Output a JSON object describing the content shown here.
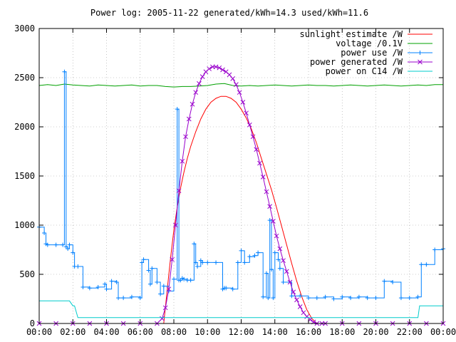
{
  "chart_data": {
    "type": "line",
    "title": "Power log: 2005-11-22 generated/kWh=14.3 used/kWh=11.6",
    "xlim": [
      0,
      24
    ],
    "ylim": [
      0,
      3000
    ],
    "x_ticks": [
      "00:00",
      "02:00",
      "04:00",
      "06:00",
      "08:00",
      "10:00",
      "12:00",
      "14:00",
      "16:00",
      "18:00",
      "20:00",
      "22:00",
      "00:00"
    ],
    "y_ticks": [
      "0",
      "500",
      "1000",
      "1500",
      "2000",
      "2500",
      "3000"
    ],
    "grid": true,
    "legend_position": "top-right",
    "series": [
      {
        "name": "sunlight estimate /W",
        "color": "#ff0000",
        "marker": "none",
        "x": [
          7.4,
          7.6,
          7.8,
          8.0,
          8.2,
          8.4,
          8.6,
          8.8,
          9.0,
          9.3,
          9.6,
          9.9,
          10.2,
          10.5,
          10.8,
          11.1,
          11.4,
          11.7,
          12.0,
          12.3,
          12.6,
          12.9,
          13.2,
          13.5,
          13.8,
          14.1,
          14.4,
          14.7,
          15.0,
          15.3,
          15.6,
          15.9,
          16.2,
          16.5
        ],
        "y": [
          0,
          330,
          660,
          950,
          1180,
          1380,
          1540,
          1680,
          1800,
          1950,
          2080,
          2180,
          2250,
          2290,
          2310,
          2310,
          2290,
          2250,
          2180,
          2090,
          1980,
          1840,
          1680,
          1520,
          1360,
          1180,
          990,
          800,
          610,
          430,
          270,
          140,
          50,
          0
        ]
      },
      {
        "name": "voltage /0.1V",
        "color": "#00a000",
        "marker": "none",
        "x": [
          0,
          0.5,
          1,
          1.5,
          2,
          2.5,
          3,
          3.5,
          4,
          4.5,
          5,
          5.5,
          6,
          6.5,
          7,
          7.5,
          8,
          8.5,
          9,
          9.5,
          10,
          10.5,
          11,
          11.5,
          12,
          12.5,
          13,
          13.5,
          14,
          14.5,
          15,
          15.5,
          16,
          16.5,
          17,
          17.5,
          18,
          18.5,
          19,
          19.5,
          20,
          20.5,
          21,
          21.5,
          22,
          22.5,
          23,
          23.5,
          24
        ],
        "y": [
          2420,
          2430,
          2420,
          2435,
          2425,
          2420,
          2415,
          2425,
          2420,
          2415,
          2420,
          2425,
          2415,
          2420,
          2420,
          2410,
          2405,
          2410,
          2410,
          2415,
          2420,
          2435,
          2440,
          2420,
          2415,
          2420,
          2415,
          2420,
          2425,
          2420,
          2415,
          2420,
          2425,
          2420,
          2420,
          2415,
          2420,
          2425,
          2420,
          2415,
          2420,
          2425,
          2420,
          2415,
          2420,
          2425,
          2420,
          2430,
          2430
        ]
      },
      {
        "name": "power use /W",
        "color": "#0080ff",
        "marker": "plus",
        "x": [
          0,
          0.3,
          0.4,
          0.5,
          1.0,
          1.4,
          1.5,
          1.6,
          1.7,
          1.8,
          2.0,
          2.1,
          2.3,
          2.6,
          3.0,
          3.5,
          3.9,
          4.0,
          4.3,
          4.6,
          4.7,
          5.0,
          5.5,
          6.0,
          6.1,
          6.2,
          6.5,
          6.6,
          6.7,
          7.0,
          7.2,
          7.4,
          7.7,
          8.0,
          8.2,
          8.3,
          8.4,
          8.5,
          8.6,
          8.8,
          9.0,
          9.2,
          9.3,
          9.4,
          9.6,
          9.7,
          10.0,
          10.5,
          10.9,
          11.0,
          11.1,
          11.5,
          11.8,
          12.0,
          12.2,
          12.5,
          12.8,
          13.0,
          13.3,
          13.5,
          13.6,
          13.7,
          13.8,
          13.9,
          14.0,
          14.2,
          14.3,
          14.5,
          15.0,
          15.5,
          16.0,
          16.5,
          17.0,
          17.5,
          18.0,
          18.5,
          19.0,
          19.5,
          20.0,
          20.5,
          21.0,
          21.5,
          22.0,
          22.5,
          22.7,
          23.0,
          23.5,
          24.0
        ],
        "y": [
          980,
          920,
          810,
          800,
          800,
          800,
          2560,
          780,
          760,
          800,
          720,
          580,
          580,
          370,
          360,
          370,
          400,
          350,
          430,
          420,
          260,
          260,
          270,
          260,
          620,
          650,
          540,
          400,
          560,
          420,
          300,
          380,
          330,
          450,
          2180,
          440,
          440,
          460,
          450,
          440,
          440,
          810,
          620,
          580,
          640,
          620,
          620,
          620,
          350,
          360,
          360,
          350,
          620,
          740,
          620,
          680,
          690,
          720,
          270,
          510,
          260,
          1050,
          550,
          260,
          720,
          650,
          560,
          420,
          280,
          280,
          260,
          260,
          270,
          250,
          270,
          260,
          270,
          260,
          260,
          430,
          420,
          260,
          260,
          270,
          600,
          600,
          750,
          760
        ]
      },
      {
        "name": "power generated /W",
        "color": "#9900cc",
        "marker": "x",
        "x": [
          0,
          1,
          2,
          3,
          4,
          5,
          6,
          7,
          7.3,
          7.5,
          7.7,
          7.9,
          8.1,
          8.3,
          8.5,
          8.7,
          8.9,
          9.1,
          9.3,
          9.5,
          9.7,
          9.9,
          10.1,
          10.3,
          10.5,
          10.7,
          10.9,
          11.1,
          11.3,
          11.5,
          11.7,
          11.9,
          12.1,
          12.3,
          12.5,
          12.7,
          12.9,
          13.1,
          13.3,
          13.5,
          13.7,
          13.9,
          14.1,
          14.3,
          14.5,
          14.7,
          14.9,
          15.1,
          15.3,
          15.5,
          15.7,
          15.9,
          16.1,
          16.3,
          16.5,
          16.8,
          17,
          18,
          19,
          20,
          21,
          22,
          23,
          24
        ],
        "y": [
          0,
          0,
          0,
          0,
          0,
          0,
          0,
          0,
          50,
          160,
          350,
          650,
          1000,
          1350,
          1650,
          1900,
          2080,
          2230,
          2350,
          2440,
          2510,
          2560,
          2590,
          2610,
          2610,
          2600,
          2580,
          2560,
          2530,
          2490,
          2430,
          2350,
          2250,
          2140,
          2020,
          1900,
          1770,
          1630,
          1490,
          1340,
          1190,
          1040,
          890,
          760,
          640,
          530,
          420,
          320,
          240,
          170,
          110,
          70,
          40,
          15,
          0,
          0,
          0,
          0,
          0,
          0,
          0,
          0,
          0,
          0
        ]
      },
      {
        "name": "power on C14 /W",
        "color": "#00cccc",
        "marker": "none",
        "x": [
          0,
          0.5,
          1.0,
          1.5,
          1.8,
          2.0,
          2.1,
          2.3,
          3,
          4,
          5,
          6,
          7,
          8,
          9,
          10,
          11,
          12,
          13,
          14,
          15,
          16,
          17,
          18,
          19,
          20,
          21,
          22,
          22.5,
          22.6,
          23,
          24
        ],
        "y": [
          230,
          230,
          230,
          230,
          230,
          180,
          180,
          60,
          60,
          60,
          60,
          60,
          60,
          60,
          60,
          60,
          60,
          60,
          60,
          60,
          60,
          60,
          60,
          60,
          60,
          60,
          60,
          60,
          60,
          180,
          180,
          180
        ]
      }
    ]
  }
}
